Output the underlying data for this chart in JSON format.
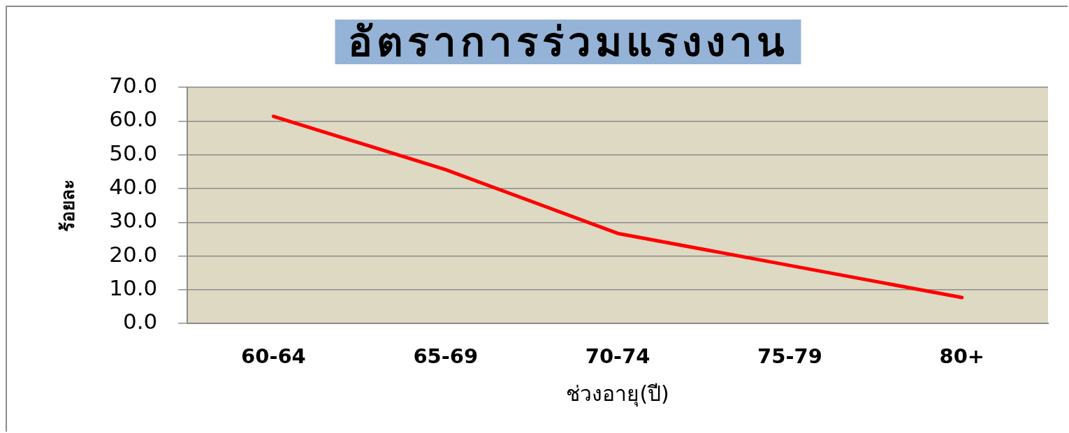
{
  "chart_data": {
    "type": "line",
    "title": "อัตราการร่วมแรงงาน",
    "xlabel": "ช่วงอายุ(ปี)",
    "ylabel": "ร้อยละ",
    "categories": [
      "60-64",
      "65-69",
      "70-74",
      "75-79",
      "80+"
    ],
    "series": [
      {
        "color": "#ff0000",
        "values": [
          61.4,
          45.6,
          26.7,
          17.2,
          7.7
        ]
      }
    ],
    "ylim": [
      0,
      70
    ],
    "yticks": [
      {
        "value": 0,
        "label": "0.0"
      },
      {
        "value": 10,
        "label": "10.0"
      },
      {
        "value": 20,
        "label": "20.0"
      },
      {
        "value": 30,
        "label": "30.0"
      },
      {
        "value": 40,
        "label": "40.0"
      },
      {
        "value": 50,
        "label": "50.0"
      },
      {
        "value": 60,
        "label": "60.0"
      },
      {
        "value": 70,
        "label": "70.0"
      }
    ],
    "grid": "y",
    "legend": false,
    "marker": "none",
    "line_style": "solid"
  }
}
